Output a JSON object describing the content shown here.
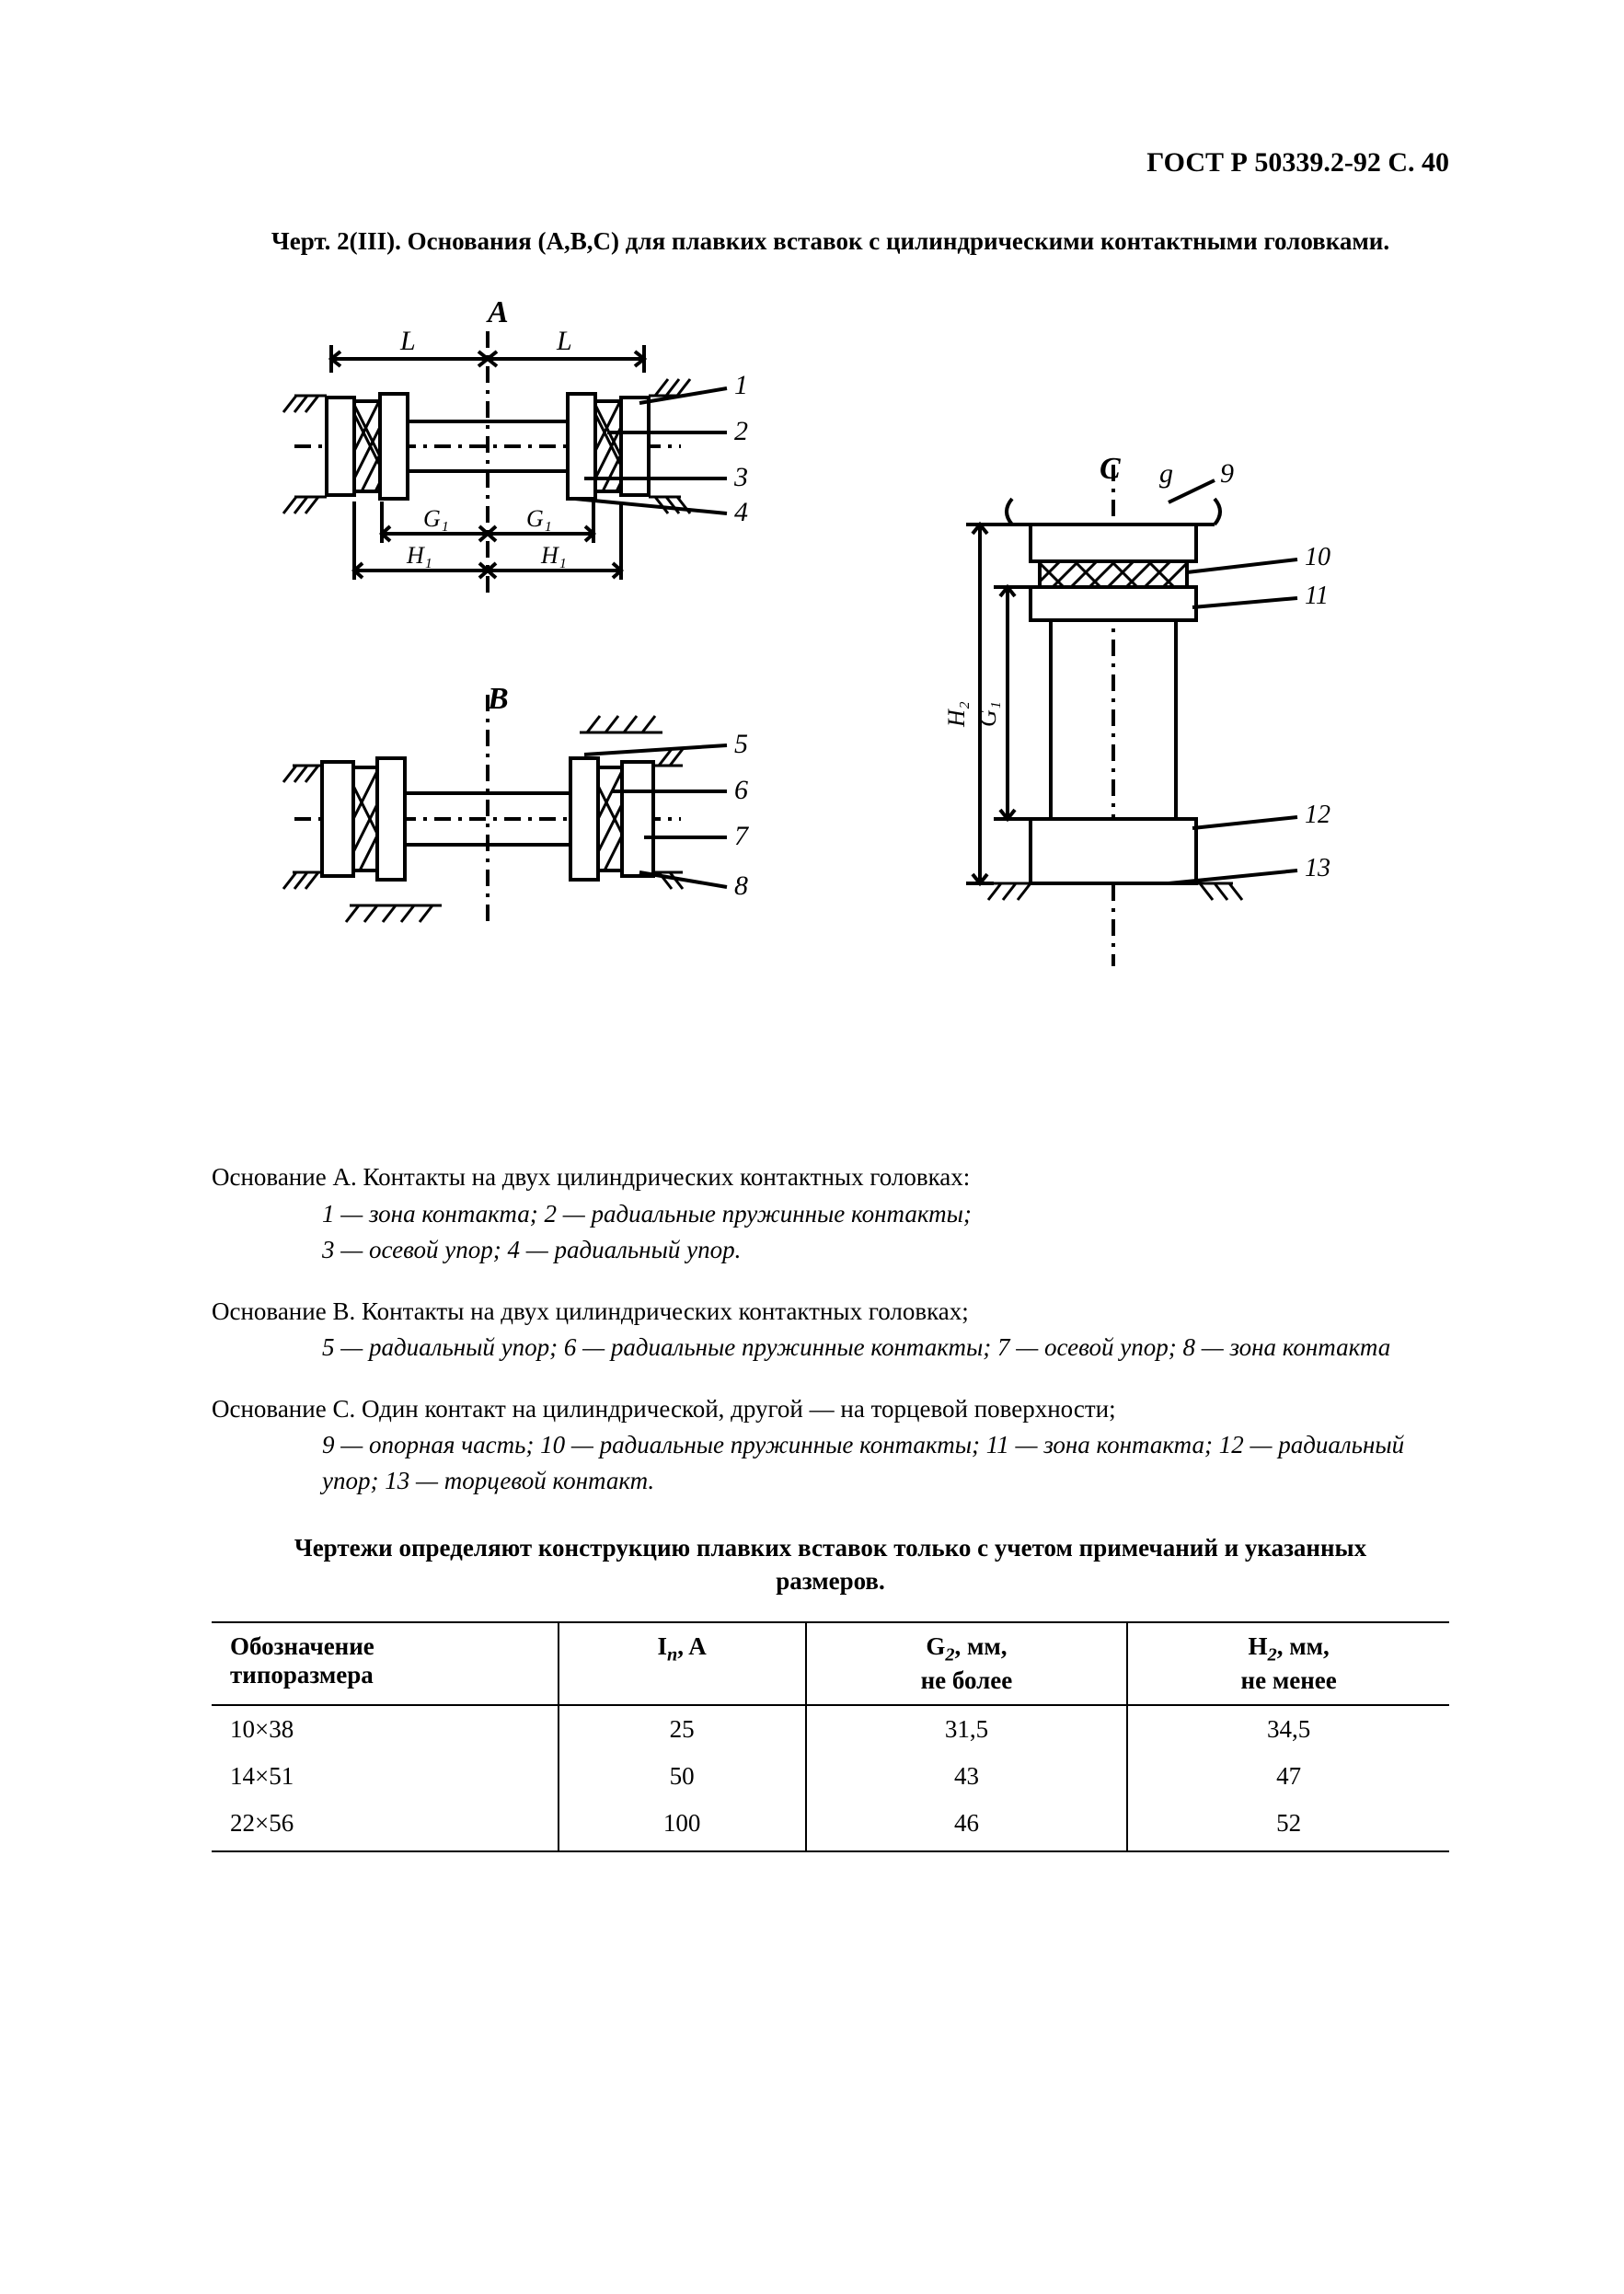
{
  "page_header": "ГОСТ Р 50339.2-92 С. 40",
  "figure_title": "Черт. 2(III). Основания (A,B,C) для плавких вставок с цилиндрическими контактными головками.",
  "diagram": {
    "labels": {
      "A": "A",
      "B": "B",
      "C": "C",
      "L": "L",
      "G1": "G₁",
      "H1": "H₁",
      "G1_b": "G₁",
      "H1_b": "H₁",
      "H2": "H₂",
      "G1_c": "G₁",
      "g": "g"
    },
    "callouts_A": [
      "1",
      "2",
      "3",
      "4"
    ],
    "callouts_B": [
      "5",
      "6",
      "7",
      "8"
    ],
    "callouts_C": [
      "10",
      "11",
      "12",
      "13"
    ],
    "callout_C_top": "9",
    "stroke": "#000000",
    "stroke_w": 4
  },
  "legend": {
    "A_title": "Основание А. Контакты на двух цилиндрических  контактных головках:",
    "A_lines": [
      "1 — зона контакта; 2 — радиальные пружинные контакты;",
      "3 — осевой упор; 4 — радиальный упор."
    ],
    "B_title": "Основание В. Контакты на двух цилиндрических контактных головках;",
    "B_lines": [
      "5 — радиальный упор; 6 — радиальные пружинные контакты; 7 — осевой упор; 8 — зона контакта"
    ],
    "C_title": "Основание С. Один контакт на цилиндрической, другой — на торцевой поверхности;",
    "C_lines": [
      "9 — опорная часть; 10 — радиальные пружинные контакты; 11 — зона контакта; 12 — радиальный упор; 13 — торцевой контакт."
    ]
  },
  "table_note": "Чертежи определяют конструкцию плавких вставок только с учетом примечаний и указанных размеров.",
  "table": {
    "columns": [
      "Обозначение типоразмера",
      "Iₙ, А",
      "G₂, мм, не более",
      "H₂, мм, не менее"
    ],
    "col_html": [
      "Обозначение<br>типоразмера",
      "I<span class='sub'>n</span>, A",
      "G<span class='sub'>2</span>, мм,<br>не более",
      "H<span class='sub'>2</span>, мм,<br>не менее"
    ],
    "rows": [
      [
        "10×38",
        "25",
        "31,5",
        "34,5"
      ],
      [
        "14×51",
        "50",
        "43",
        "47"
      ],
      [
        "22×56",
        "100",
        "46",
        "52"
      ]
    ],
    "col_widths_pct": [
      28,
      20,
      26,
      26
    ]
  }
}
